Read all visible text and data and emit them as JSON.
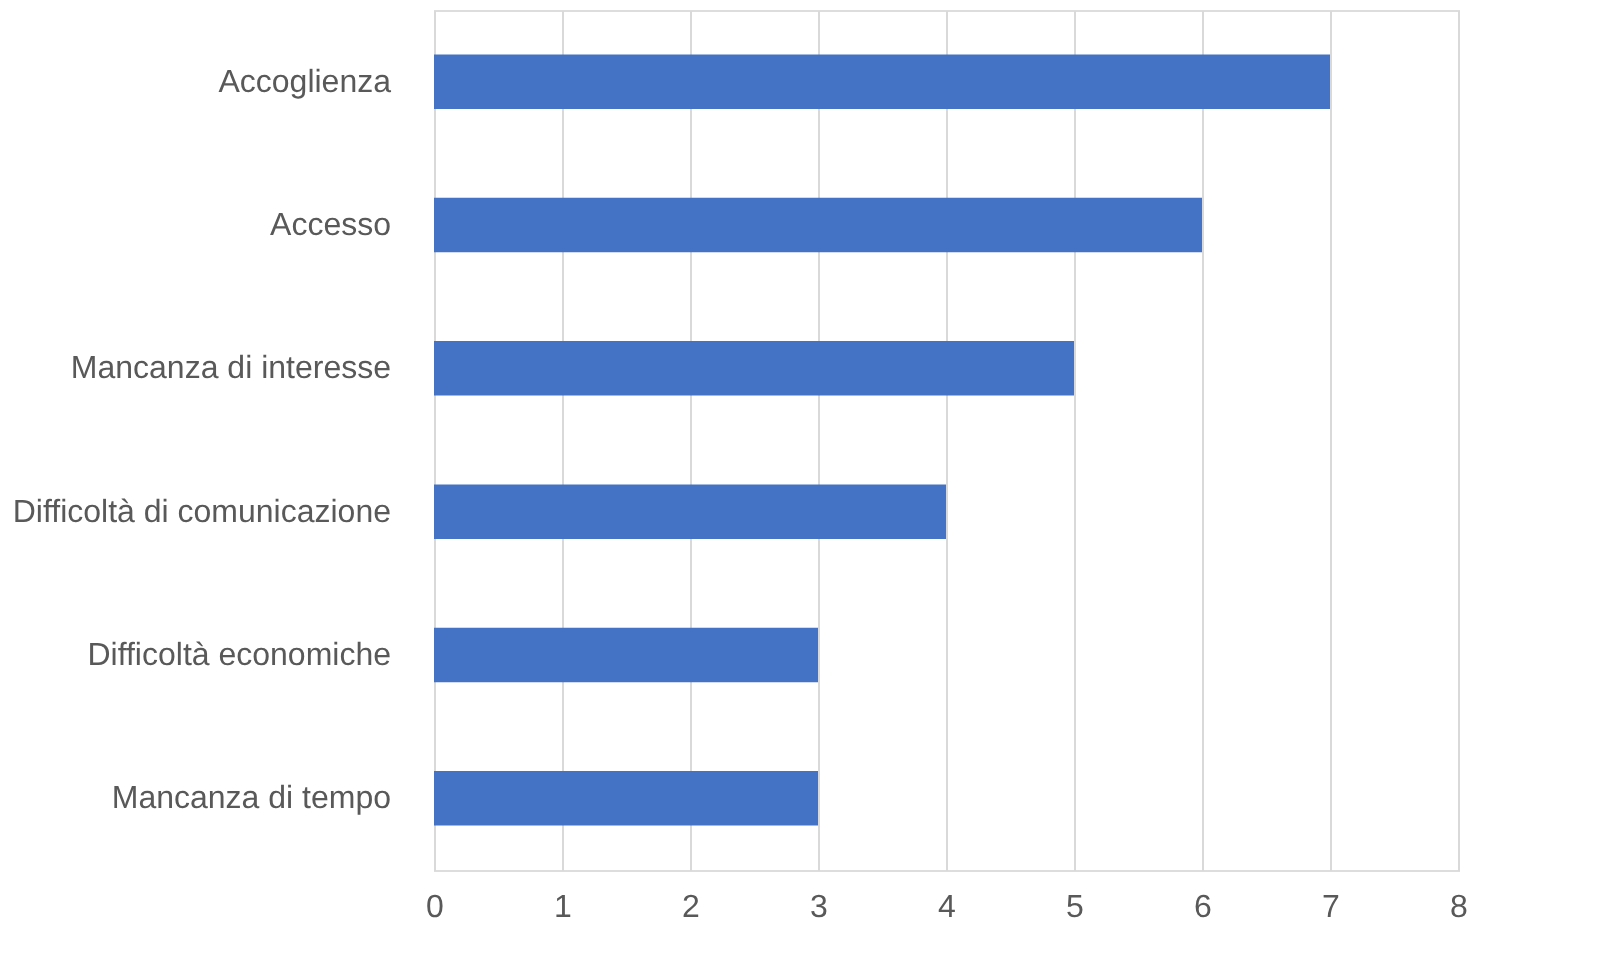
{
  "chart_data": {
    "type": "bar",
    "orientation": "horizontal",
    "categories": [
      "Accoglienza",
      "Accesso",
      "Mancanza di interesse",
      "Difficoltà di comunicazione",
      "Difficoltà economiche",
      "Mancanza di tempo"
    ],
    "values": [
      7,
      6,
      5,
      4,
      3,
      3
    ],
    "color": "#4472c4",
    "xlim": [
      0,
      8
    ],
    "xticks": [
      0,
      1,
      2,
      3,
      4,
      5,
      6,
      7,
      8
    ],
    "grid": "x"
  }
}
